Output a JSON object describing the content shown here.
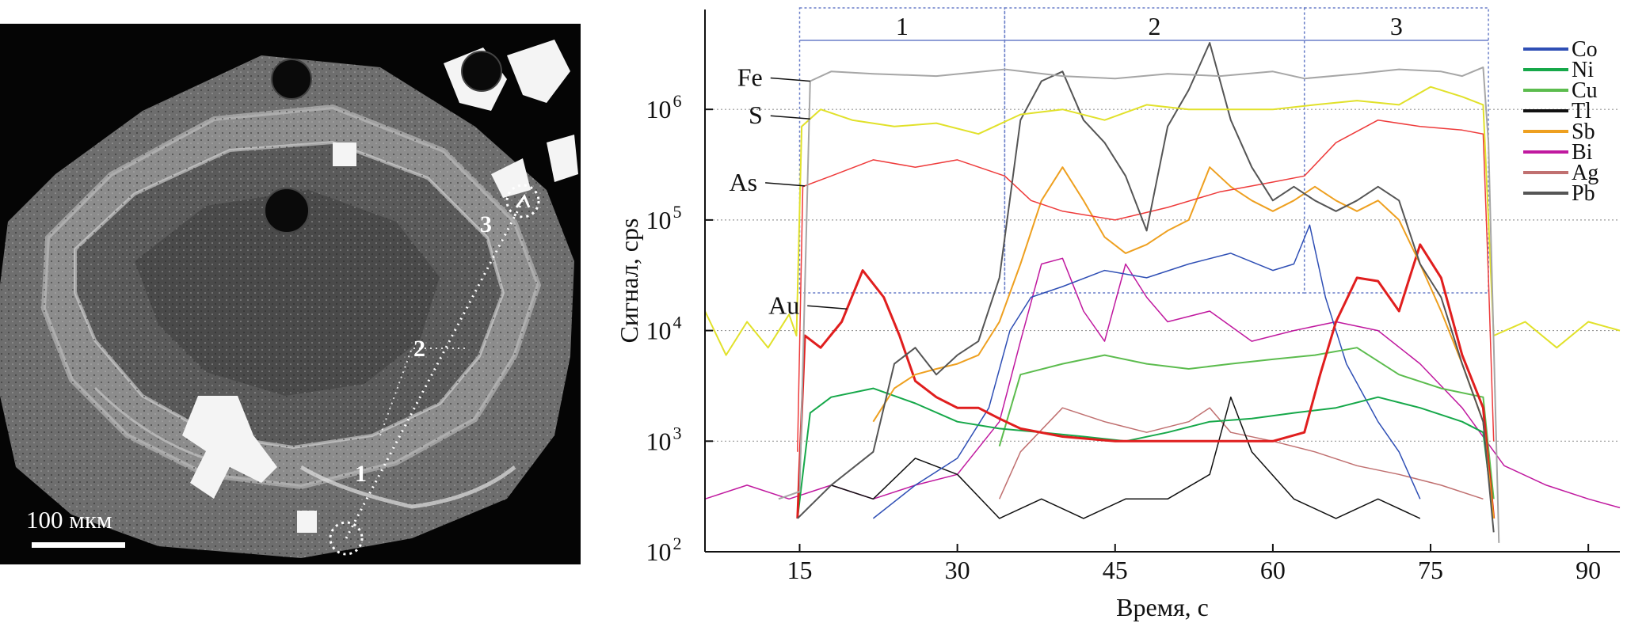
{
  "micrograph": {
    "scale_label": "100 мкм",
    "point_labels": [
      "1",
      "2",
      "3"
    ]
  },
  "chart_data": {
    "type": "line",
    "xlabel": "Время, с",
    "ylabel": "Сигнал, cps",
    "xlim": [
      6,
      93
    ],
    "ylim": [
      100,
      8000000
    ],
    "y_scale": "log",
    "x_ticks": [
      15,
      30,
      45,
      60,
      75,
      90
    ],
    "y_ticks": [
      {
        "value": 100,
        "base": "10",
        "exp": "2"
      },
      {
        "value": 1000,
        "base": "10",
        "exp": "3"
      },
      {
        "value": 10000,
        "base": "10",
        "exp": "4"
      },
      {
        "value": 100000,
        "base": "10",
        "exp": "5"
      },
      {
        "value": 1000000,
        "base": "10",
        "exp": "6"
      }
    ],
    "grid": "horizontal-dotted",
    "legend_position": "top-right",
    "zones": [
      {
        "label": "1",
        "x0": 15,
        "x1": 34.5
      },
      {
        "label": "2",
        "x0": 34.5,
        "x1": 63
      },
      {
        "label": "3",
        "x0": 63,
        "x1": 80.5
      }
    ],
    "curve_labels": [
      {
        "text": "Fe",
        "series": "Fe",
        "x": 16
      },
      {
        "text": "S",
        "series": "S",
        "x": 16
      },
      {
        "text": "As",
        "series": "As",
        "x": 15.5
      },
      {
        "text": "Au",
        "series": "Au",
        "x": 19.5
      }
    ],
    "legend": [
      "Co",
      "Ni",
      "Cu",
      "Tl",
      "Sb",
      "Bi",
      "Ag",
      "Pb"
    ],
    "series": [
      {
        "name": "Fe",
        "color": "#a6a6a6",
        "width": 2,
        "x": [
          13,
          15,
          16,
          18,
          22,
          28,
          34.5,
          40,
          45,
          50,
          55,
          60,
          63,
          68,
          72,
          76,
          78,
          80,
          80.5,
          81.5
        ],
        "y": [
          300,
          350,
          1800000,
          2200000,
          2100000,
          2000000,
          2300000,
          2000000,
          1900000,
          2100000,
          2000000,
          2200000,
          1900000,
          2100000,
          2300000,
          2200000,
          2000000,
          2400000,
          500000,
          120
        ]
      },
      {
        "name": "S",
        "color": "#e1e12a",
        "width": 2,
        "x": [
          6,
          8,
          10,
          12,
          14,
          14.7,
          15.2,
          17,
          20,
          24,
          28,
          32,
          36,
          40,
          44,
          48,
          52,
          56,
          60,
          64,
          68,
          72,
          75,
          78,
          80,
          80.5,
          81,
          84,
          87,
          90,
          93
        ],
        "y": [
          15000,
          6000,
          12000,
          7000,
          14000,
          9000,
          700000,
          1000000,
          800000,
          700000,
          750000,
          600000,
          900000,
          1000000,
          800000,
          1100000,
          1000000,
          1000000,
          1000000,
          1100000,
          1200000,
          1100000,
          1600000,
          1300000,
          1100000,
          100000,
          9000,
          12000,
          7000,
          12000,
          10000
        ]
      },
      {
        "name": "As",
        "color": "#ee3b3b",
        "width": 1.5,
        "x": [
          14.8,
          15.3,
          18,
          22,
          26,
          30,
          34.5,
          37,
          40,
          45,
          50,
          55,
          60,
          63,
          66,
          70,
          74,
          78,
          80,
          80.5,
          81
        ],
        "y": [
          800,
          200000,
          250000,
          350000,
          300000,
          350000,
          250000,
          150000,
          120000,
          100000,
          130000,
          180000,
          220000,
          250000,
          500000,
          800000,
          700000,
          650000,
          600000,
          30000,
          1000
        ]
      },
      {
        "name": "Au",
        "color": "#e01e1e",
        "width": 3,
        "x": [
          14.8,
          15.5,
          17,
          19,
          21,
          23,
          24.5,
          26,
          28,
          30,
          32,
          34,
          36,
          40,
          45,
          50,
          55,
          60,
          63,
          64.5,
          66,
          68,
          70,
          72,
          74,
          76,
          78,
          80,
          81
        ],
        "y": [
          200,
          9000,
          7000,
          12000,
          35000,
          20000,
          9000,
          3500,
          2500,
          2000,
          2000,
          1600,
          1300,
          1100,
          1000,
          1000,
          1000,
          1000,
          1200,
          4000,
          12000,
          30000,
          28000,
          15000,
          60000,
          30000,
          6000,
          2000,
          200
        ]
      },
      {
        "name": "Co",
        "color": "#2f4fb5",
        "width": 1.5,
        "x": [
          22,
          26,
          30,
          33,
          35,
          37,
          40,
          44,
          48,
          52,
          56,
          60,
          62,
          63.5,
          65,
          67,
          70,
          72,
          74
        ],
        "y": [
          200,
          400,
          700,
          2000,
          10000,
          20000,
          25000,
          35000,
          30000,
          40000,
          50000,
          35000,
          40000,
          90000,
          20000,
          5000,
          1500,
          800,
          300
        ]
      },
      {
        "name": "Ni",
        "color": "#16a84a",
        "width": 2,
        "x": [
          14.8,
          16,
          18,
          22,
          26,
          30,
          34,
          38,
          42,
          46,
          50,
          54,
          58,
          62,
          66,
          70,
          74,
          78,
          80,
          81
        ],
        "y": [
          200,
          1800,
          2500,
          3000,
          2200,
          1500,
          1300,
          1200,
          1100,
          1000,
          1200,
          1500,
          1600,
          1800,
          2000,
          2500,
          2000,
          1500,
          1200,
          200
        ]
      },
      {
        "name": "Cu",
        "color": "#5cbc4e",
        "width": 2,
        "x": [
          34,
          36,
          40,
          44,
          48,
          52,
          56,
          60,
          64,
          68,
          72,
          76,
          80,
          81
        ],
        "y": [
          900,
          4000,
          5000,
          6000,
          5000,
          4500,
          5000,
          5500,
          6000,
          7000,
          4000,
          3000,
          2500,
          300
        ]
      },
      {
        "name": "Tl",
        "color": "#111111",
        "width": 1.5,
        "x": [
          18,
          22,
          26,
          30,
          34,
          38,
          42,
          46,
          50,
          54,
          56,
          58,
          62,
          66,
          70,
          74
        ],
        "y": [
          400,
          300,
          700,
          500,
          200,
          300,
          200,
          300,
          300,
          500,
          2500,
          800,
          300,
          200,
          300,
          200
        ]
      },
      {
        "name": "Sb",
        "color": "#eea020",
        "width": 2,
        "x": [
          22,
          24,
          26,
          28,
          30,
          32,
          34,
          36,
          38,
          40,
          42,
          44,
          46,
          48,
          50,
          52,
          54,
          56,
          58,
          60,
          62,
          64,
          66,
          68,
          70,
          72,
          74,
          76,
          78,
          80,
          81
        ],
        "y": [
          1500,
          3000,
          4000,
          4500,
          5000,
          6000,
          12000,
          40000,
          150000,
          300000,
          150000,
          70000,
          50000,
          60000,
          80000,
          100000,
          300000,
          200000,
          150000,
          120000,
          150000,
          200000,
          150000,
          120000,
          150000,
          100000,
          40000,
          15000,
          5000,
          1500,
          200
        ]
      },
      {
        "name": "Bi",
        "color": "#c0199f",
        "width": 1.5,
        "x": [
          6,
          10,
          14,
          18,
          22,
          26,
          30,
          34,
          36,
          38,
          40,
          42,
          44,
          46,
          48,
          50,
          54,
          58,
          62,
          66,
          70,
          74,
          78,
          82,
          86,
          90,
          93
        ],
        "y": [
          300,
          400,
          300,
          400,
          300,
          400,
          500,
          1500,
          8000,
          40000,
          45000,
          15000,
          8000,
          40000,
          20000,
          12000,
          15000,
          8000,
          10000,
          12000,
          10000,
          5000,
          2000,
          600,
          400,
          300,
          250
        ]
      },
      {
        "name": "Ag",
        "color": "#c07070",
        "width": 1.5,
        "x": [
          34,
          36,
          40,
          44,
          48,
          52,
          54,
          56,
          60,
          64,
          68,
          72,
          76,
          80
        ],
        "y": [
          300,
          800,
          2000,
          1500,
          1200,
          1500,
          2000,
          1200,
          1000,
          800,
          600,
          500,
          400,
          300
        ]
      },
      {
        "name": "Pb",
        "color": "#555555",
        "width": 2,
        "x": [
          14.8,
          18,
          22,
          24,
          26,
          28,
          30,
          32,
          34,
          36,
          38,
          40,
          42,
          44,
          46,
          48,
          50,
          52,
          54,
          56,
          58,
          60,
          62,
          64,
          66,
          68,
          70,
          72,
          74,
          76,
          78,
          80,
          81
        ],
        "y": [
          200,
          400,
          800,
          5000,
          7000,
          4000,
          6000,
          8000,
          30000,
          800000,
          1800000,
          2200000,
          800000,
          500000,
          250000,
          80000,
          700000,
          1500000,
          4000000,
          800000,
          300000,
          150000,
          200000,
          150000,
          120000,
          150000,
          200000,
          150000,
          40000,
          20000,
          5000,
          1500,
          150
        ]
      }
    ]
  }
}
